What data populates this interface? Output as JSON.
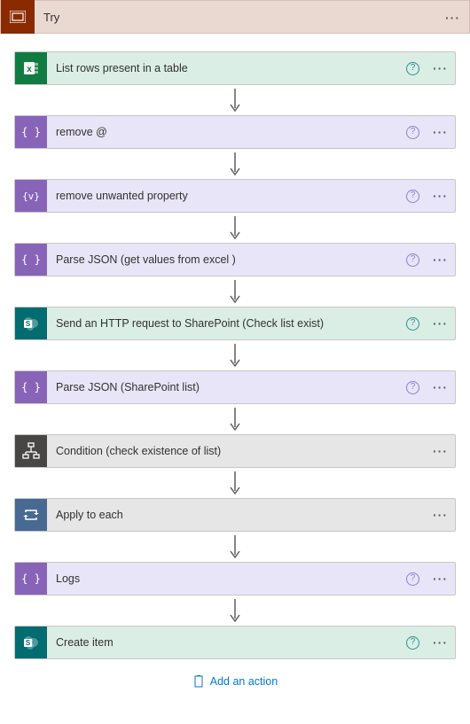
{
  "header": {
    "label": "Try",
    "bg_color": "#e9d9d1",
    "icon_bg": "#8a2a00"
  },
  "help_color_teal": "#2a8f8c",
  "help_color_purple": "#8b7dd6",
  "nodes": [
    {
      "label": "List rows present in a table",
      "bg": "#dbeee6",
      "icon_bg": "#107c41",
      "icon": "excel",
      "help": "teal"
    },
    {
      "label": "remove @",
      "bg": "#e9e5f8",
      "icon_bg": "#8764b8",
      "icon": "braces",
      "help": "purple"
    },
    {
      "label": "remove unwanted property",
      "bg": "#e9e5f8",
      "icon_bg": "#8764b8",
      "icon": "braces-v",
      "help": "purple"
    },
    {
      "label": "Parse JSON (get values from excel )",
      "bg": "#e9e5f8",
      "icon_bg": "#8764b8",
      "icon": "braces",
      "help": "purple"
    },
    {
      "label": "Send an HTTP request to SharePoint (Check list exist)",
      "bg": "#dbeee6",
      "icon_bg": "#036c70",
      "icon": "sharepoint",
      "help": "teal"
    },
    {
      "label": "Parse JSON (SharePoint list)",
      "bg": "#e9e5f8",
      "icon_bg": "#8764b8",
      "icon": "braces",
      "help": "purple"
    },
    {
      "label": "Condition (check existence of list)",
      "bg": "#e6e6e6",
      "icon_bg": "#484644",
      "icon": "condition",
      "help": ""
    },
    {
      "label": "Apply to each",
      "bg": "#e6e6e6",
      "icon_bg": "#486991",
      "icon": "loop",
      "help": ""
    },
    {
      "label": "Logs",
      "bg": "#e9e5f8",
      "icon_bg": "#8764b8",
      "icon": "braces",
      "help": "purple"
    },
    {
      "label": "Create item",
      "bg": "#dbeee6",
      "icon_bg": "#036c70",
      "icon": "sharepoint",
      "help": "teal"
    }
  ],
  "add_action_label": "Add an action"
}
